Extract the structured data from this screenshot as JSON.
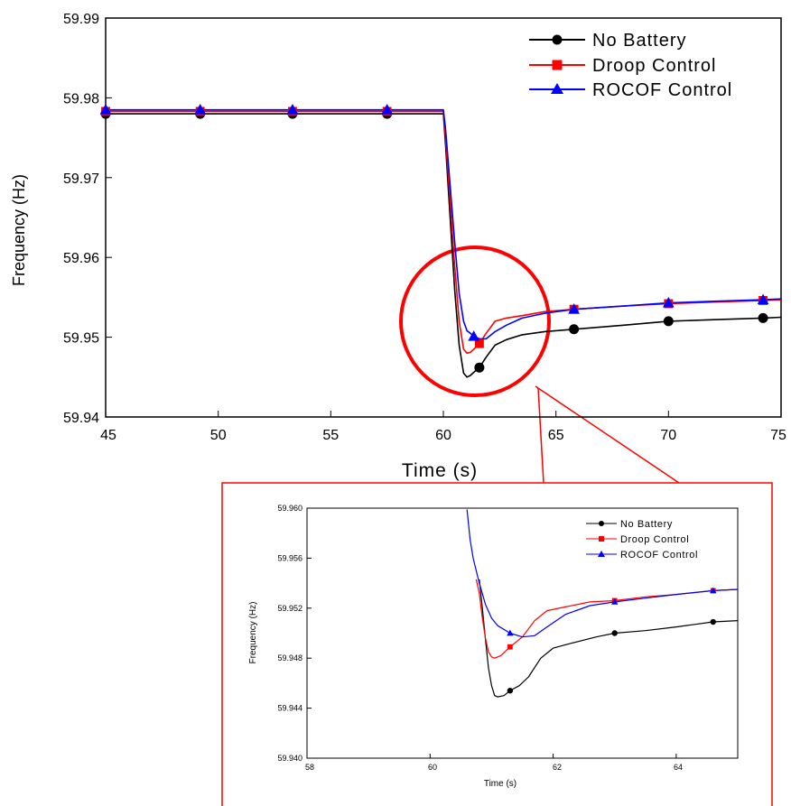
{
  "chart_data": [
    {
      "type": "line",
      "xlabel": "Time (s)",
      "ylabel": "Frequency (Hz)",
      "xlim": [
        45,
        75
      ],
      "ylim": [
        59.94,
        59.99
      ],
      "xticks": [
        "45",
        "50",
        "55",
        "60",
        "65",
        "70",
        "75"
      ],
      "yticks": [
        "59.94",
        "59.95",
        "59.96",
        "59.97",
        "59.98",
        "59.99"
      ],
      "grid": false,
      "legend_position": "top-right",
      "series": [
        {
          "name": "No Battery",
          "color": "#000000",
          "marker": "circle",
          "x": [
            45,
            49.2,
            53.3,
            57.5,
            60.0,
            60.1,
            60.3,
            60.5,
            60.7,
            60.9,
            61.05,
            61.2,
            61.35,
            61.6,
            61.9,
            62.3,
            62.8,
            63.5,
            64.5,
            65.8,
            68,
            70,
            72,
            74.2,
            75
          ],
          "y": [
            59.978,
            59.978,
            59.978,
            59.978,
            59.978,
            59.974,
            59.965,
            59.956,
            59.949,
            59.9455,
            59.945,
            59.9452,
            59.9456,
            59.9462,
            59.9475,
            59.949,
            59.9497,
            59.9503,
            59.9507,
            59.951,
            59.9515,
            59.952,
            59.9522,
            59.9524,
            59.9525
          ],
          "marker_x": [
            45,
            49.2,
            53.3,
            57.5,
            61.6,
            65.8,
            70,
            74.2
          ],
          "marker_y": [
            59.978,
            59.978,
            59.978,
            59.978,
            59.9462,
            59.951,
            59.952,
            59.9524
          ]
        },
        {
          "name": "Droop Control",
          "color": "#ff0000",
          "marker": "square",
          "x": [
            45,
            49.2,
            53.3,
            57.5,
            60.0,
            60.1,
            60.3,
            60.5,
            60.7,
            60.9,
            61.05,
            61.2,
            61.35,
            61.6,
            61.9,
            62.3,
            62.8,
            63.5,
            64.5,
            65.8,
            68,
            70,
            72,
            74.2,
            75
          ],
          "y": [
            59.9783,
            59.9783,
            59.9783,
            59.9783,
            59.9783,
            59.975,
            59.967,
            59.959,
            59.952,
            59.9485,
            59.948,
            59.9481,
            59.9485,
            59.9492,
            59.9505,
            59.952,
            59.9524,
            59.9527,
            59.9532,
            59.9535,
            59.9539,
            59.9542,
            59.9544,
            59.9546,
            59.9547
          ],
          "marker_x": [
            45,
            49.2,
            53.3,
            57.5,
            61.6,
            65.8,
            70,
            74.2
          ],
          "marker_y": [
            59.9783,
            59.9783,
            59.9783,
            59.9783,
            59.9492,
            59.9535,
            59.9542,
            59.9546
          ]
        },
        {
          "name": "ROCOF Control",
          "color": "#0000ff",
          "marker": "triangle",
          "x": [
            45,
            49.2,
            53.3,
            57.5,
            60.0,
            60.1,
            60.3,
            60.5,
            60.7,
            60.9,
            61.05,
            61.2,
            61.35,
            61.6,
            61.9,
            62.3,
            62.8,
            63.5,
            64.5,
            65.8,
            68,
            70,
            72,
            74.2,
            75
          ],
          "y": [
            59.9785,
            59.9785,
            59.9785,
            59.9785,
            59.9785,
            59.976,
            59.969,
            59.962,
            59.9555,
            59.952,
            59.9508,
            59.9505,
            59.9501,
            59.9498,
            59.9498,
            59.9507,
            59.9515,
            59.9524,
            59.953,
            59.9535,
            59.9539,
            59.9543,
            59.9545,
            59.9547,
            59.9548
          ],
          "marker_x": [
            45,
            49.2,
            53.3,
            57.5,
            61.35,
            65.8,
            70,
            74.2
          ],
          "marker_y": [
            59.9785,
            59.9785,
            59.9785,
            59.9785,
            59.9501,
            59.9535,
            59.9543,
            59.9547
          ]
        }
      ]
    },
    {
      "type": "line",
      "xlabel": "Time (s)",
      "ylabel": "Frequency (Hz)",
      "xlim": [
        58,
        65
      ],
      "ylim": [
        59.94,
        59.96
      ],
      "xticks": [
        "58",
        "60",
        "62",
        "64"
      ],
      "yticks": [
        "59.940",
        "59.944",
        "59.948",
        "59.952",
        "59.956",
        "59.960"
      ],
      "grid": false,
      "legend_position": "top-right",
      "series": [
        {
          "name": "No Battery",
          "color": "#000000",
          "marker": "circle",
          "x": [
            60.8,
            60.85,
            60.9,
            60.95,
            61.0,
            61.05,
            61.1,
            61.2,
            61.3,
            61.45,
            61.6,
            61.8,
            62.0,
            62.3,
            62.7,
            63.0,
            63.5,
            64.0,
            64.6,
            65.0
          ],
          "y": [
            59.9543,
            59.952,
            59.9495,
            59.9472,
            59.9458,
            59.945,
            59.9449,
            59.945,
            59.9454,
            59.9458,
            59.9465,
            59.948,
            59.9488,
            59.9492,
            59.9497,
            59.95,
            59.9502,
            59.9505,
            59.9509,
            59.951
          ],
          "marker_x": [
            61.3,
            63.0,
            64.6
          ],
          "marker_y": [
            59.9454,
            59.95,
            59.9509
          ]
        },
        {
          "name": "Droop Control",
          "color": "#ff0000",
          "marker": "square",
          "x": [
            60.75,
            60.8,
            60.85,
            60.9,
            60.95,
            61.0,
            61.05,
            61.15,
            61.3,
            61.5,
            61.7,
            61.9,
            62.2,
            62.6,
            63.0,
            63.5,
            64.0,
            64.6,
            65.0
          ],
          "y": [
            59.9543,
            59.9532,
            59.9512,
            59.9496,
            59.9485,
            59.9481,
            59.948,
            59.9482,
            59.9489,
            59.9497,
            59.951,
            59.9518,
            59.9521,
            59.9525,
            59.9526,
            59.9529,
            59.9531,
            59.9534,
            59.9535
          ],
          "marker_x": [
            61.3,
            63.0,
            64.6
          ],
          "marker_y": [
            59.9489,
            59.9526,
            59.9534
          ]
        },
        {
          "name": "ROCOF Control",
          "color": "#0000ff",
          "marker": "triangle",
          "x": [
            60.6,
            60.65,
            60.7,
            60.8,
            60.9,
            61.0,
            61.1,
            61.3,
            61.5,
            61.7,
            61.9,
            62.2,
            62.6,
            63.0,
            63.5,
            64.0,
            64.6,
            65.0
          ],
          "y": [
            59.9599,
            59.9575,
            59.956,
            59.954,
            59.9523,
            59.9512,
            59.9506,
            59.95,
            59.9497,
            59.9498,
            59.9505,
            59.9515,
            59.9522,
            59.9525,
            59.9528,
            59.9531,
            59.9534,
            59.9535
          ],
          "marker_x": [
            61.3,
            63.0,
            64.6
          ],
          "marker_y": [
            59.95,
            59.9525,
            59.9534
          ]
        }
      ]
    }
  ]
}
